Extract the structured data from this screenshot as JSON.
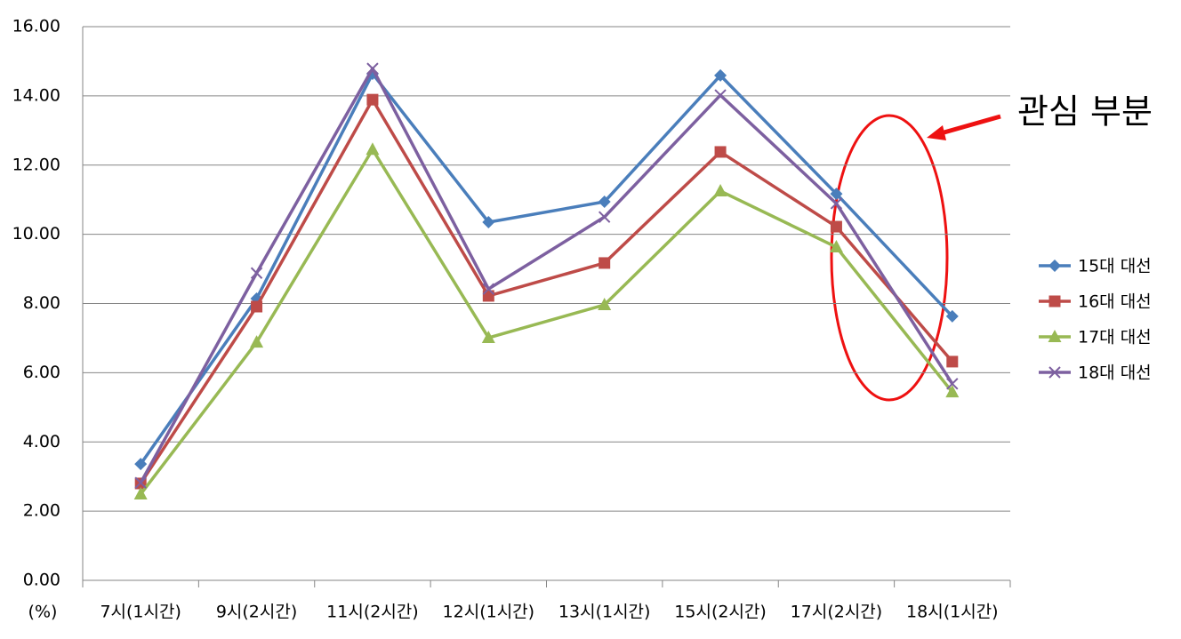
{
  "chart_data": {
    "type": "line",
    "y_unit_label": "(%)",
    "annotation": "관심 부분",
    "categories": [
      "7시(1시간)",
      "9시(2시간)",
      "11시(2시간)",
      "12시(1시간)",
      "13시(1시간)",
      "15시(2시간)",
      "17시(2시간)",
      "18시(1시간)"
    ],
    "series": [
      {
        "name": "15대 대선",
        "color": "#4a7ebb",
        "marker": "diamond",
        "values": [
          3.36,
          8.14,
          14.64,
          10.35,
          10.94,
          14.59,
          11.17,
          7.63
        ]
      },
      {
        "name": "16대 대선",
        "color": "#be4b48",
        "marker": "square",
        "values": [
          2.8,
          7.91,
          13.89,
          8.22,
          9.17,
          12.38,
          10.22,
          6.32
        ]
      },
      {
        "name": "17대 대선",
        "color": "#98b954",
        "marker": "triangle",
        "values": [
          2.49,
          6.88,
          12.45,
          7.01,
          7.96,
          11.25,
          9.63,
          5.44
        ]
      },
      {
        "name": "18대 대선",
        "color": "#7d60a0",
        "marker": "x",
        "values": [
          2.82,
          8.88,
          14.79,
          8.42,
          10.5,
          14.02,
          10.89,
          5.68
        ]
      }
    ],
    "ylim": [
      0,
      16
    ],
    "yticks": [
      {
        "value": 0,
        "label": "0.00"
      },
      {
        "value": 2,
        "label": "2.00"
      },
      {
        "value": 4,
        "label": "4.00"
      },
      {
        "value": 6,
        "label": "6.00"
      },
      {
        "value": 8,
        "label": "8.00"
      },
      {
        "value": 10,
        "label": "10.00"
      },
      {
        "value": 12,
        "label": "12.00"
      },
      {
        "value": 14,
        "label": "14.00"
      },
      {
        "value": 16,
        "label": "16.00"
      }
    ],
    "grid": true,
    "legend": "right"
  }
}
